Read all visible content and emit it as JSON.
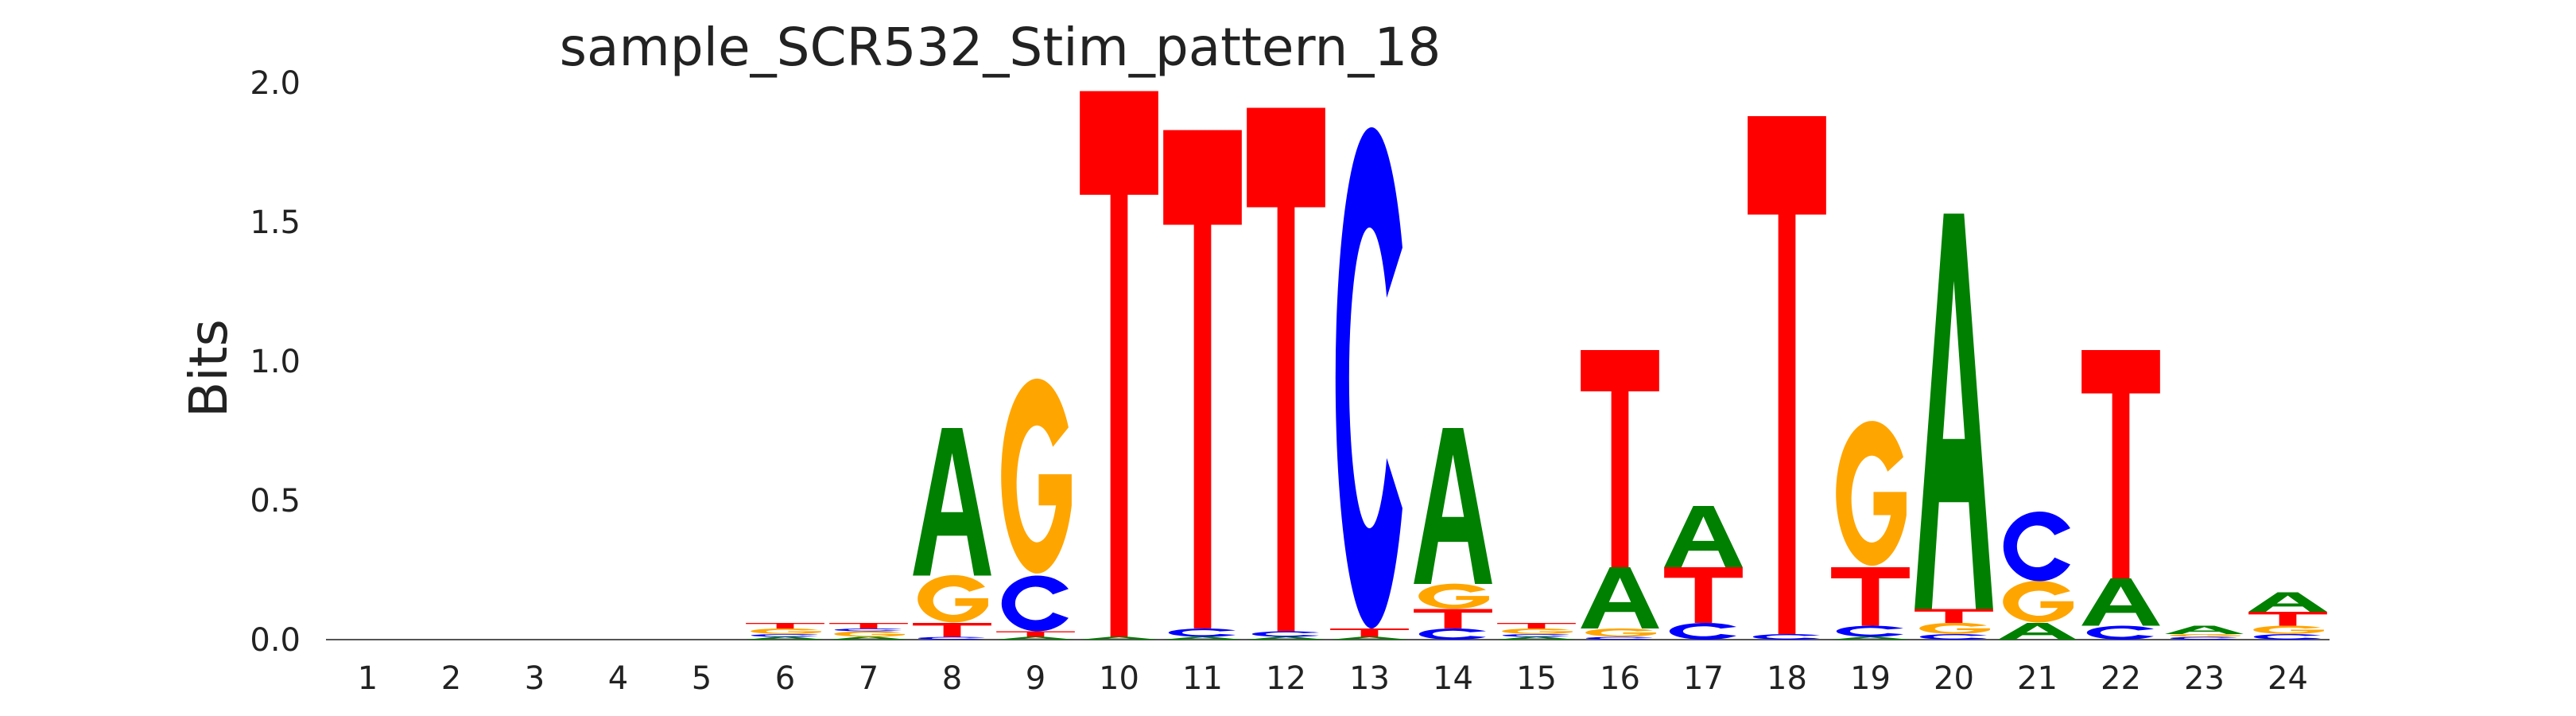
{
  "chart_data": {
    "type": "sequence-logo",
    "title": "sample_SCR532_Stim_pattern_18",
    "ylabel": "Bits",
    "xlabel": "",
    "ylim": [
      0,
      2.0
    ],
    "yticks": [
      "0.0",
      "0.5",
      "1.0",
      "1.5",
      "2.0"
    ],
    "grid": false,
    "legend": "none",
    "colors": {
      "A": "#008000",
      "C": "#0000ff",
      "G": "#ffa500",
      "T": "#ff0000"
    },
    "positions": [
      {
        "pos": "1",
        "stack": []
      },
      {
        "pos": "2",
        "stack": []
      },
      {
        "pos": "3",
        "stack": []
      },
      {
        "pos": "4",
        "stack": []
      },
      {
        "pos": "5",
        "stack": []
      },
      {
        "pos": "6",
        "stack": [
          {
            "base": "A",
            "bits": 0.01
          },
          {
            "base": "C",
            "bits": 0.01
          },
          {
            "base": "G",
            "bits": 0.02
          },
          {
            "base": "T",
            "bits": 0.02
          }
        ]
      },
      {
        "pos": "7",
        "stack": [
          {
            "base": "A",
            "bits": 0.01
          },
          {
            "base": "G",
            "bits": 0.02
          },
          {
            "base": "C",
            "bits": 0.01
          },
          {
            "base": "T",
            "bits": 0.02
          }
        ]
      },
      {
        "pos": "8",
        "stack": [
          {
            "base": "C",
            "bits": 0.01
          },
          {
            "base": "T",
            "bits": 0.05
          },
          {
            "base": "G",
            "bits": 0.17
          },
          {
            "base": "A",
            "bits": 0.53
          }
        ]
      },
      {
        "pos": "9",
        "stack": [
          {
            "base": "A",
            "bits": 0.01
          },
          {
            "base": "T",
            "bits": 0.02
          },
          {
            "base": "C",
            "bits": 0.2
          },
          {
            "base": "G",
            "bits": 0.7
          }
        ]
      },
      {
        "pos": "10",
        "stack": [
          {
            "base": "A",
            "bits": 0.01
          },
          {
            "base": "T",
            "bits": 1.96
          }
        ]
      },
      {
        "pos": "11",
        "stack": [
          {
            "base": "A",
            "bits": 0.01
          },
          {
            "base": "C",
            "bits": 0.03
          },
          {
            "base": "T",
            "bits": 1.79
          }
        ]
      },
      {
        "pos": "12",
        "stack": [
          {
            "base": "A",
            "bits": 0.01
          },
          {
            "base": "C",
            "bits": 0.02
          },
          {
            "base": "T",
            "bits": 1.88
          }
        ]
      },
      {
        "pos": "13",
        "stack": [
          {
            "base": "A",
            "bits": 0.01
          },
          {
            "base": "T",
            "bits": 0.03
          },
          {
            "base": "C",
            "bits": 1.8
          }
        ]
      },
      {
        "pos": "14",
        "stack": [
          {
            "base": "C",
            "bits": 0.04
          },
          {
            "base": "T",
            "bits": 0.07
          },
          {
            "base": "G",
            "bits": 0.09
          },
          {
            "base": "A",
            "bits": 0.56
          }
        ]
      },
      {
        "pos": "15",
        "stack": [
          {
            "base": "A",
            "bits": 0.01
          },
          {
            "base": "C",
            "bits": 0.01
          },
          {
            "base": "G",
            "bits": 0.02
          },
          {
            "base": "T",
            "bits": 0.02
          }
        ]
      },
      {
        "pos": "16",
        "stack": [
          {
            "base": "C",
            "bits": 0.01
          },
          {
            "base": "G",
            "bits": 0.03
          },
          {
            "base": "A",
            "bits": 0.22
          },
          {
            "base": "T",
            "bits": 0.78
          }
        ]
      },
      {
        "pos": "17",
        "stack": [
          {
            "base": "C",
            "bits": 0.06
          },
          {
            "base": "T",
            "bits": 0.2
          },
          {
            "base": "A",
            "bits": 0.22
          }
        ]
      },
      {
        "pos": "18",
        "stack": [
          {
            "base": "C",
            "bits": 0.02
          },
          {
            "base": "T",
            "bits": 1.86
          }
        ]
      },
      {
        "pos": "19",
        "stack": [
          {
            "base": "A",
            "bits": 0.01
          },
          {
            "base": "C",
            "bits": 0.04
          },
          {
            "base": "T",
            "bits": 0.21
          },
          {
            "base": "G",
            "bits": 0.52
          }
        ]
      },
      {
        "pos": "20",
        "stack": [
          {
            "base": "C",
            "bits": 0.02
          },
          {
            "base": "G",
            "bits": 0.04
          },
          {
            "base": "T",
            "bits": 0.05
          },
          {
            "base": "A",
            "bits": 1.42
          }
        ]
      },
      {
        "pos": "21",
        "stack": [
          {
            "base": "A",
            "bits": 0.06
          },
          {
            "base": "G",
            "bits": 0.15
          },
          {
            "base": "C",
            "bits": 0.25
          }
        ]
      },
      {
        "pos": "22",
        "stack": [
          {
            "base": "C",
            "bits": 0.05
          },
          {
            "base": "A",
            "bits": 0.17
          },
          {
            "base": "T",
            "bits": 0.82
          }
        ]
      },
      {
        "pos": "23",
        "stack": [
          {
            "base": "C",
            "bits": 0.01
          },
          {
            "base": "G",
            "bits": 0.01
          },
          {
            "base": "A",
            "bits": 0.03
          }
        ]
      },
      {
        "pos": "24",
        "stack": [
          {
            "base": "C",
            "bits": 0.02
          },
          {
            "base": "G",
            "bits": 0.03
          },
          {
            "base": "T",
            "bits": 0.05
          },
          {
            "base": "A",
            "bits": 0.07
          }
        ]
      }
    ]
  }
}
